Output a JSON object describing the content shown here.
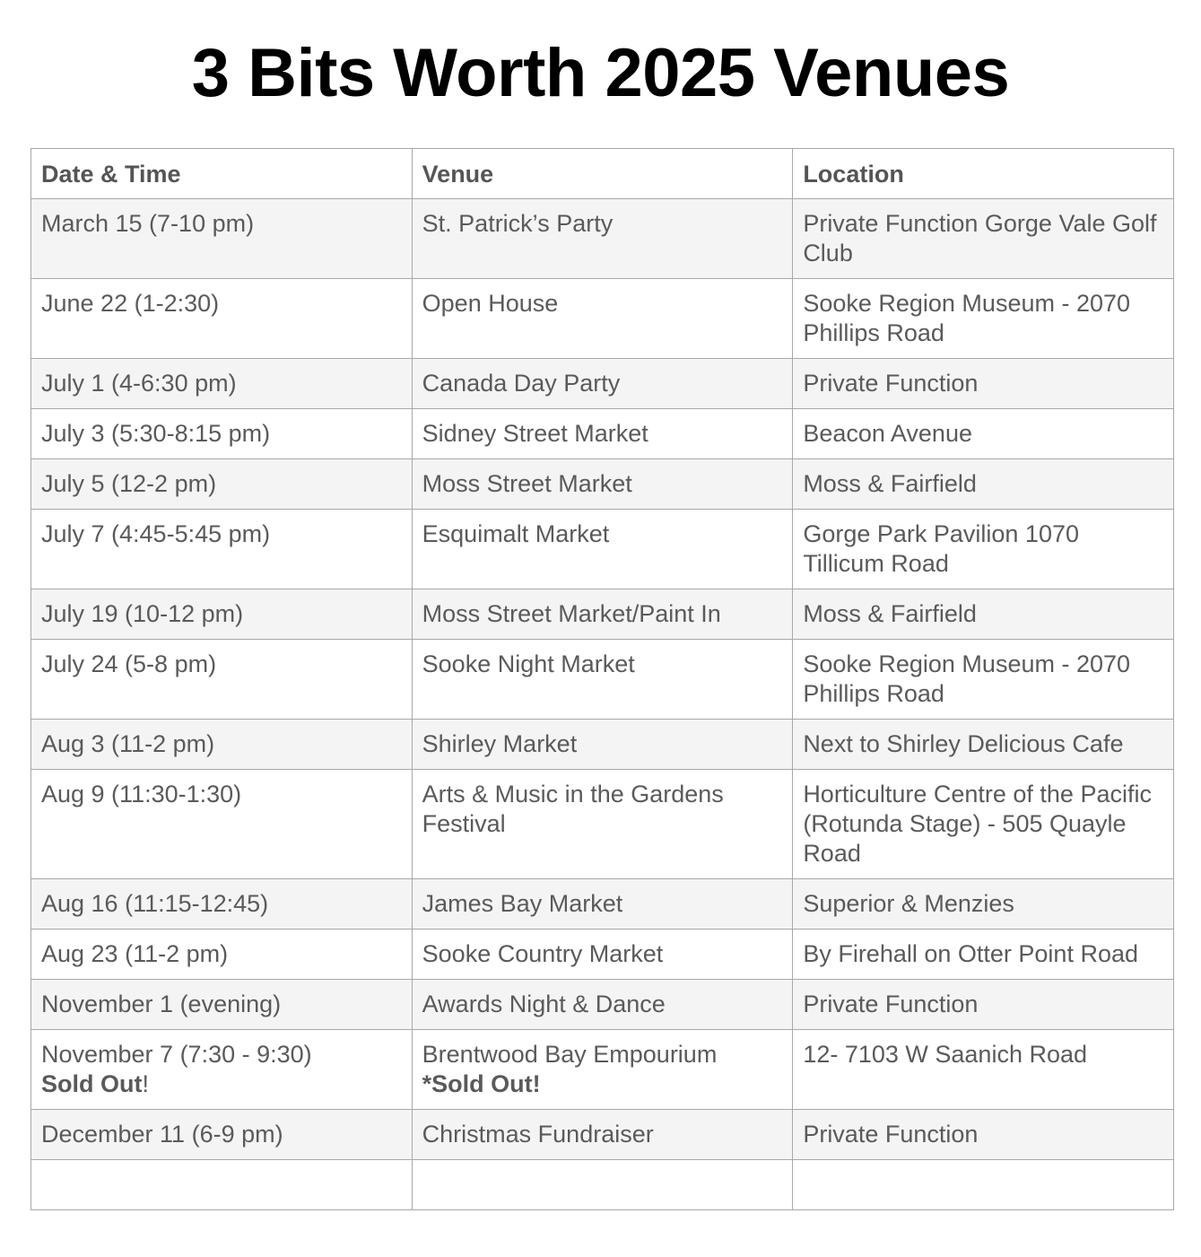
{
  "title": "3 Bits Worth 2025 Venues",
  "headers": [
    "Date & Time",
    "Venue",
    "Location"
  ],
  "rows": [
    {
      "date": "March 15 (7-10 pm)",
      "venue": "St. Patrick’s Party",
      "location": "Private Function Gorge Vale Golf Club"
    },
    {
      "date": "June 22 (1-2:30)",
      "venue": "Open House",
      "location": "Sooke Region Museum - 2070 Phillips Road"
    },
    {
      "date": "July 1 (4-6:30 pm)",
      "venue": "Canada Day Party",
      "location": "Private Function"
    },
    {
      "date": "July 3 (5:30-8:15 pm)",
      "venue": "Sidney Street Market",
      "location": "Beacon Avenue"
    },
    {
      "date": "July 5 (12-2 pm)",
      "venue": "Moss Street Market",
      "location": "Moss & Fairfield"
    },
    {
      "date": "July 7 (4:45-5:45 pm)",
      "venue": "Esquimalt Market",
      "location": "Gorge Park Pavilion 1070 Tillicum Road"
    },
    {
      "date": "July 19 (10-12 pm)",
      "venue": "Moss Street Market/Paint In",
      "location": "Moss & Fairfield"
    },
    {
      "date": "July 24 (5-8 pm)",
      "venue": "Sooke Night Market",
      "location": "Sooke Region Museum - 2070 Phillips Road"
    },
    {
      "date": "Aug 3 (11-2 pm)",
      "venue": "Shirley Market",
      "location": "Next to Shirley Delicious Cafe"
    },
    {
      "date": "Aug 9 (11:30-1:30)",
      "venue": "Arts & Music in the Gardens Festival",
      "location": "Horticulture Centre of the Pacific (Rotunda Stage) - 505 Quayle Road"
    },
    {
      "date": "Aug 16 (11:15-12:45)",
      "venue": "James Bay Market",
      "location": "Superior & Menzies"
    },
    {
      "date": "Aug 23 (11-2 pm)",
      "venue": "Sooke Country Market",
      "location": "By Firehall on Otter Point Road"
    },
    {
      "date": "November 1 (evening)",
      "venue": "Awards Night & Dance",
      "location": "Private Function"
    },
    {
      "date": "November 7 (7:30 - 9:30)",
      "date_note_bold": "Sold Out",
      "date_note_tail": "!",
      "venue": "Brentwood Bay Empourium",
      "venue_note_bold": "*Sold Out!",
      "location": "12- 7103 W Saanich Road"
    },
    {
      "date": "December 11 (6-9 pm)",
      "venue": "Christmas Fundraiser",
      "location": "Private Function"
    },
    {
      "date": "",
      "venue": "",
      "location": ""
    }
  ]
}
